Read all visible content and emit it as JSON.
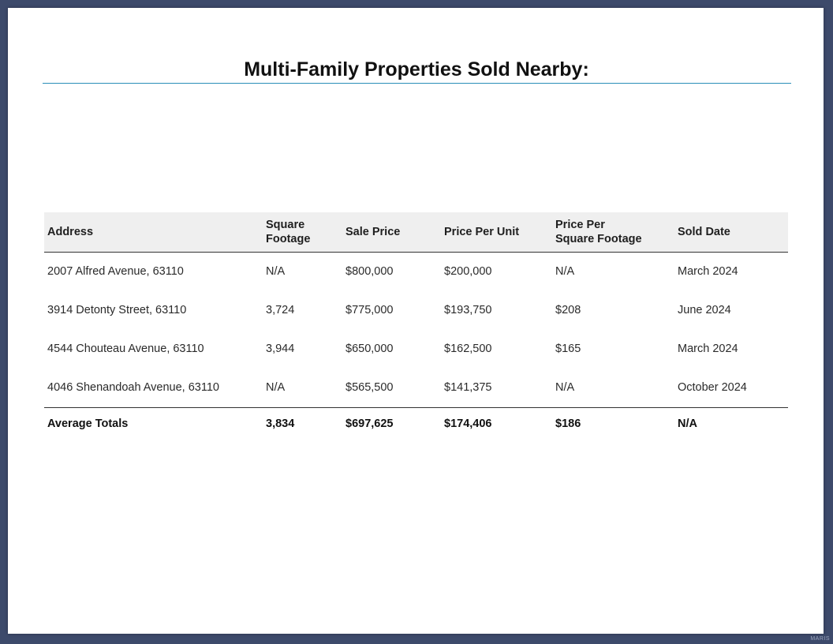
{
  "title": "Multi-Family Properties Sold Nearby:",
  "table": {
    "headers": {
      "address": "Address",
      "square_footage": [
        "Square",
        "Footage"
      ],
      "sale_price": "Sale Price",
      "price_per_unit": "Price Per Unit",
      "price_per_sqft": [
        "Price Per",
        "Square Footage"
      ],
      "sold_date": "Sold Date"
    },
    "rows": [
      {
        "address": "2007 Alfred Avenue, 63110",
        "square_footage": "N/A",
        "sale_price": "$800,000",
        "price_per_unit": "$200,000",
        "price_per_sqft": "N/A",
        "sold_date": "March 2024"
      },
      {
        "address": "3914 Detonty Street, 63110",
        "square_footage": "3,724",
        "sale_price": "$775,000",
        "price_per_unit": "$193,750",
        "price_per_sqft": "$208",
        "sold_date": "June 2024"
      },
      {
        "address": "4544 Chouteau Avenue, 63110",
        "square_footage": "3,944",
        "sale_price": "$650,000",
        "price_per_unit": "$162,500",
        "price_per_sqft": "$165",
        "sold_date": "March 2024"
      },
      {
        "address": "4046 Shenandoah Avenue, 63110",
        "square_footage": "N/A",
        "sale_price": "$565,500",
        "price_per_unit": "$141,375",
        "price_per_sqft": "N/A",
        "sold_date": "October 2024"
      }
    ],
    "totals": {
      "address": "Average Totals",
      "square_footage": "3,834",
      "sale_price": "$697,625",
      "price_per_unit": "$174,406",
      "price_per_sqft": "$186",
      "sold_date": "N/A"
    }
  },
  "watermark": "MARIS"
}
